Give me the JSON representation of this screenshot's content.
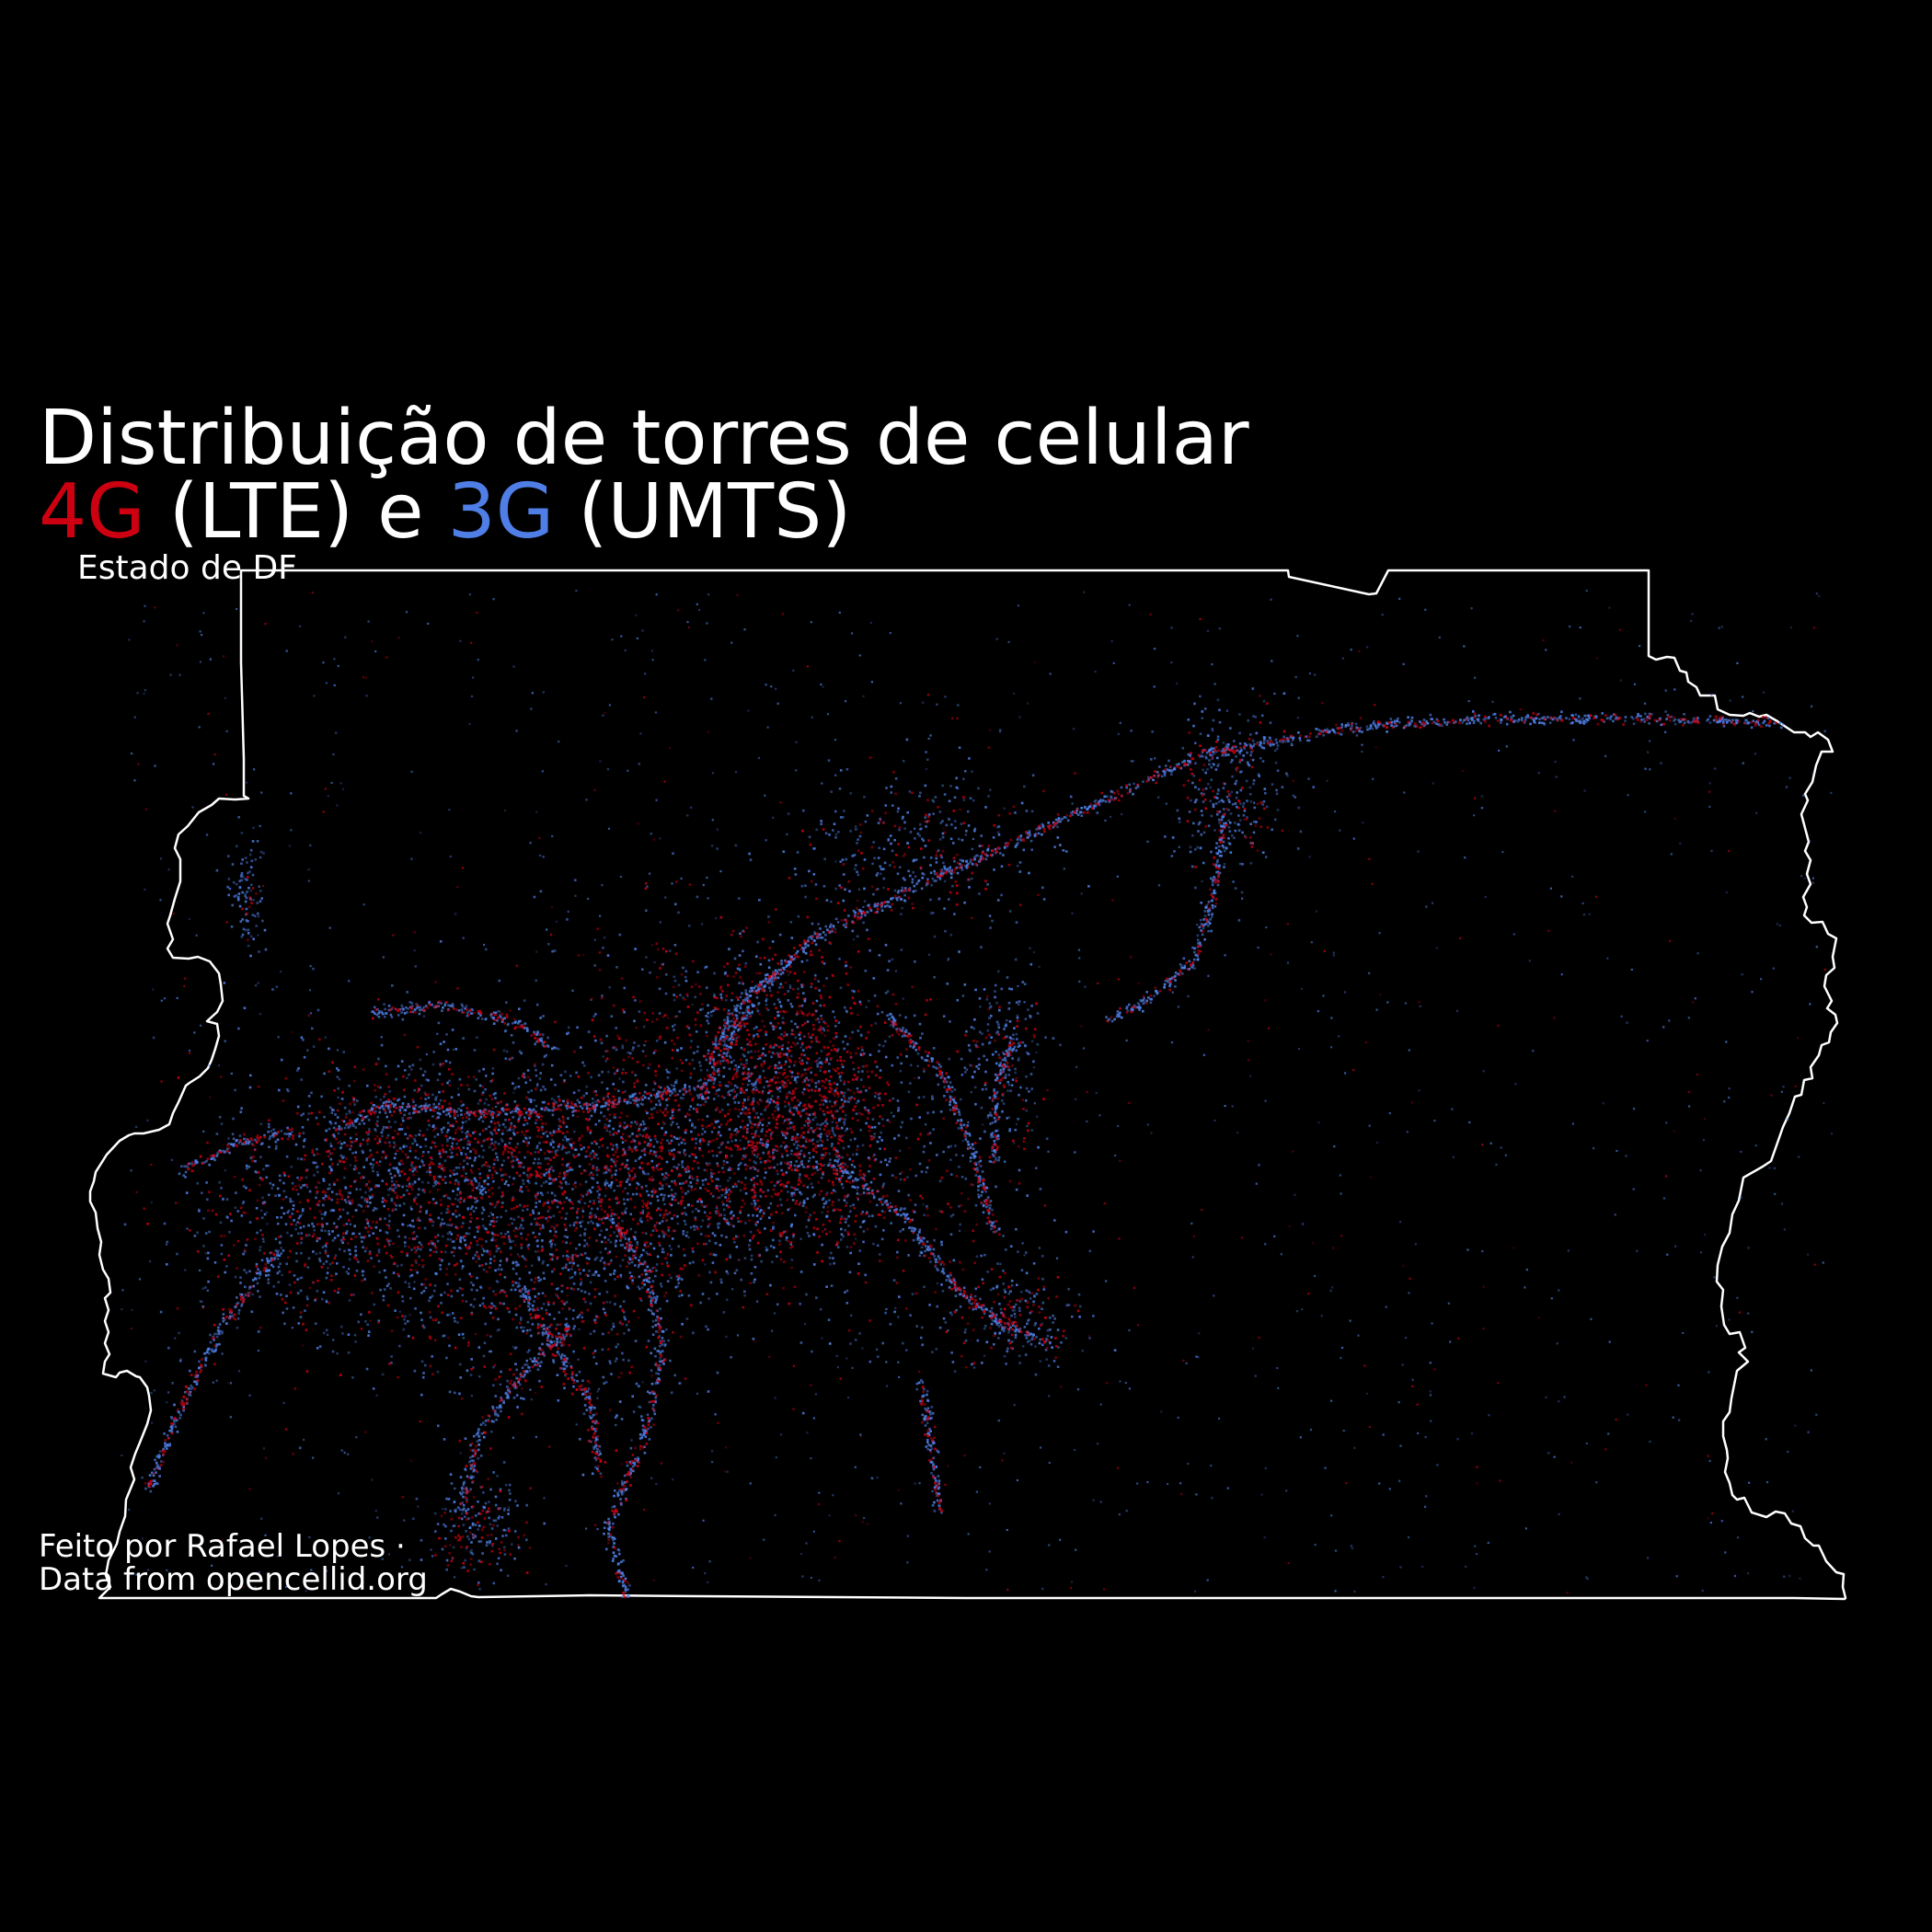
{
  "title": {
    "line1": "Distribuição de torres de celular",
    "series_4g_label": "4G",
    "series_4g_suffix": " (LTE) e ",
    "series_3g_label": "3G",
    "series_3g_suffix": " (UMTS)"
  },
  "subtitle": "Estado de DF",
  "caption": {
    "line1": "Feito por Rafael Lopes ·",
    "line2": "Data from opencellid.org"
  },
  "colors": {
    "background": "#000000",
    "text": "#ffffff",
    "border": "#ffffff",
    "lte_4g": "#cc0011",
    "umts_3g": "#4f7fe6"
  },
  "icons": {
    "map": "state-boundary-outline",
    "markers": "tower-dot"
  }
}
